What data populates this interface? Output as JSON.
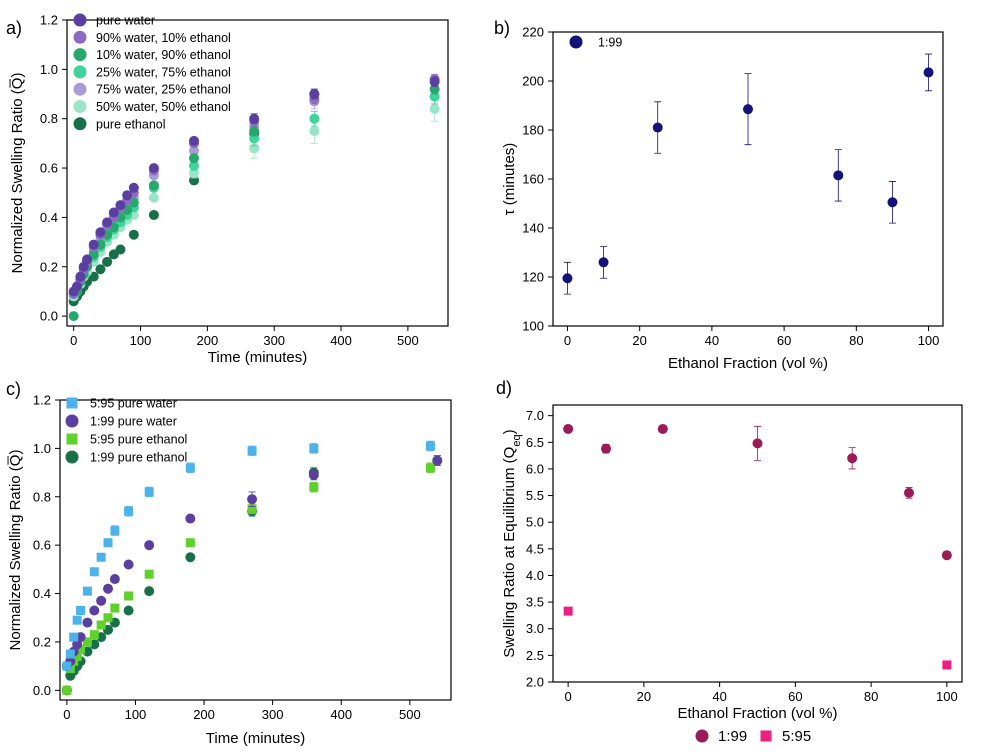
{
  "chart_data": [
    {
      "panel": "a)",
      "type": "scatter",
      "xlabel": "Time (minutes)",
      "ylabel": "Normalized Swelling Ratio (Q̅)",
      "xlim": [
        -10,
        560
      ],
      "ylim": [
        -0.04,
        1.2
      ],
      "xticks": [
        0,
        100,
        200,
        300,
        400,
        500
      ],
      "yticks": [
        0.0,
        0.2,
        0.4,
        0.6,
        0.8,
        1.0,
        1.2
      ],
      "xtick_labels": [
        "0",
        "100",
        "200",
        "300",
        "400",
        "500"
      ],
      "ytick_labels": [
        "0.0",
        "0.2",
        "0.4",
        "0.6",
        "0.8",
        "1.0",
        "1.2"
      ],
      "legend_position": "top-left",
      "series": [
        {
          "name": "pure water",
          "color": "#5b3fa0",
          "marker": "circle",
          "x": [
            0,
            5,
            10,
            15,
            20,
            30,
            40,
            50,
            60,
            70,
            80,
            90,
            120,
            180,
            270,
            360,
            540
          ],
          "y": [
            0.1,
            0.12,
            0.16,
            0.2,
            0.23,
            0.29,
            0.34,
            0.38,
            0.42,
            0.45,
            0.49,
            0.52,
            0.6,
            0.71,
            0.8,
            0.9,
            0.95
          ],
          "err": [
            0,
            0,
            0,
            0,
            0,
            0,
            0,
            0,
            0,
            0,
            0,
            0,
            0.01,
            0.01,
            0.02,
            0.02,
            0.02
          ]
        },
        {
          "name": "90% water, 10% ethanol",
          "color": "#8b6cc2",
          "marker": "circle",
          "x": [
            0,
            5,
            10,
            15,
            20,
            30,
            40,
            50,
            60,
            70,
            80,
            90,
            120,
            180,
            270,
            360,
            540
          ],
          "y": [
            0.09,
            0.12,
            0.15,
            0.19,
            0.22,
            0.28,
            0.33,
            0.37,
            0.4,
            0.44,
            0.47,
            0.5,
            0.59,
            0.7,
            0.79,
            0.88,
            0.96
          ],
          "err": [
            0,
            0,
            0,
            0,
            0,
            0,
            0,
            0,
            0,
            0,
            0,
            0,
            0.01,
            0.01,
            0.02,
            0.02,
            0.02
          ]
        },
        {
          "name": "10% water, 90% ethanol",
          "color": "#27a86b",
          "marker": "circle",
          "x": [
            0,
            5,
            10,
            15,
            20,
            30,
            40,
            50,
            60,
            70,
            80,
            90,
            120,
            180,
            270,
            360,
            540
          ],
          "y": [
            0.0,
            0.1,
            0.14,
            0.17,
            0.2,
            0.25,
            0.29,
            0.33,
            0.36,
            0.4,
            0.43,
            0.46,
            0.53,
            0.64,
            0.75,
            0.9,
            0.92
          ],
          "err": [
            0,
            0,
            0,
            0,
            0,
            0,
            0,
            0,
            0,
            0,
            0,
            0,
            0.01,
            0.01,
            0.02,
            0.02,
            0.02
          ]
        },
        {
          "name": "25% water, 75% ethanol",
          "color": "#3ed39a",
          "marker": "circle",
          "x": [
            0,
            5,
            10,
            15,
            20,
            30,
            40,
            50,
            60,
            70,
            80,
            90,
            120,
            180,
            270,
            360,
            540
          ],
          "y": [
            0.09,
            0.11,
            0.14,
            0.17,
            0.2,
            0.24,
            0.28,
            0.32,
            0.35,
            0.38,
            0.41,
            0.44,
            0.52,
            0.61,
            0.72,
            0.8,
            0.89
          ],
          "err": [
            0,
            0,
            0,
            0,
            0,
            0,
            0,
            0,
            0,
            0,
            0,
            0,
            0.01,
            0.02,
            0.03,
            0.03,
            0.03
          ]
        },
        {
          "name": "75% water, 25% ethanol",
          "color": "#aa9ad8",
          "marker": "circle",
          "x": [
            0,
            5,
            10,
            15,
            20,
            30,
            40,
            50,
            60,
            70,
            80,
            90,
            120,
            180,
            270,
            360,
            540
          ],
          "y": [
            0.09,
            0.12,
            0.15,
            0.18,
            0.21,
            0.26,
            0.31,
            0.35,
            0.39,
            0.42,
            0.45,
            0.48,
            0.57,
            0.67,
            0.77,
            0.87,
            0.89
          ],
          "err": [
            0,
            0,
            0,
            0,
            0,
            0,
            0,
            0,
            0,
            0,
            0,
            0,
            0.01,
            0.01,
            0.02,
            0.03,
            0.03
          ]
        },
        {
          "name": "50% water, 50% ethanol",
          "color": "#9be4c8",
          "marker": "circle",
          "x": [
            0,
            5,
            10,
            15,
            20,
            30,
            40,
            50,
            60,
            70,
            80,
            90,
            120,
            180,
            270,
            360,
            540
          ],
          "y": [
            0.08,
            0.1,
            0.13,
            0.16,
            0.18,
            0.22,
            0.26,
            0.3,
            0.33,
            0.36,
            0.39,
            0.41,
            0.48,
            0.58,
            0.68,
            0.75,
            0.84
          ],
          "err": [
            0,
            0,
            0,
            0,
            0,
            0,
            0,
            0,
            0,
            0,
            0,
            0,
            0.01,
            0.02,
            0.04,
            0.05,
            0.05
          ]
        },
        {
          "name": "pure ethanol",
          "color": "#17704a",
          "marker": "circle",
          "x": [
            0,
            5,
            10,
            15,
            20,
            30,
            40,
            50,
            60,
            70,
            90,
            120,
            180,
            270,
            360
          ],
          "y": [
            0.06,
            0.08,
            0.1,
            0.12,
            0.14,
            0.16,
            0.19,
            0.22,
            0.25,
            0.27,
            0.33,
            0.41,
            0.55,
            0.74,
            0.9
          ],
          "err": [
            0,
            0,
            0,
            0,
            0,
            0,
            0,
            0,
            0,
            0,
            0,
            0,
            0.01,
            0.02,
            0.02
          ]
        }
      ]
    },
    {
      "panel": "b)",
      "type": "scatter",
      "xlabel": "Ethanol Fraction (vol %)",
      "ylabel": "τ (minutes)",
      "xlim": [
        -4,
        104
      ],
      "ylim": [
        100,
        220
      ],
      "xticks": [
        0,
        20,
        40,
        60,
        80,
        100
      ],
      "yticks": [
        100,
        120,
        140,
        160,
        180,
        200,
        220
      ],
      "xtick_labels": [
        "0",
        "20",
        "40",
        "60",
        "80",
        "100"
      ],
      "ytick_labels": [
        "100",
        "120",
        "140",
        "160",
        "180",
        "200",
        "220"
      ],
      "legend_position": "top-left",
      "series": [
        {
          "name": "1:99",
          "color": "#13137a",
          "marker": "circle",
          "x": [
            0,
            10,
            25,
            50,
            75,
            90,
            100
          ],
          "y": [
            119.5,
            126,
            181,
            188.5,
            161.5,
            150.5,
            203.5
          ],
          "err": [
            6.5,
            6.5,
            10.5,
            14.5,
            10.5,
            8.5,
            7.5
          ]
        }
      ]
    },
    {
      "panel": "c)",
      "type": "scatter",
      "xlabel": "Time (minutes)",
      "ylabel": "Normalized Swelling Ratio (Q̅)",
      "xlim": [
        -10,
        560
      ],
      "ylim": [
        -0.04,
        1.2
      ],
      "xticks": [
        0,
        100,
        200,
        300,
        400,
        500
      ],
      "yticks": [
        0.0,
        0.2,
        0.4,
        0.6,
        0.8,
        1.0,
        1.2
      ],
      "xtick_labels": [
        "0",
        "100",
        "200",
        "300",
        "400",
        "500"
      ],
      "ytick_labels": [
        "0.0",
        "0.2",
        "0.4",
        "0.6",
        "0.8",
        "1.0",
        "1.2"
      ],
      "legend_position": "top-left",
      "series": [
        {
          "name": "5:95 pure water",
          "color": "#4cb3ea",
          "marker": "square",
          "x": [
            0,
            5,
            10,
            15,
            20,
            30,
            40,
            50,
            60,
            70,
            90,
            120,
            180,
            270,
            360,
            530
          ],
          "y": [
            0.1,
            0.15,
            0.22,
            0.29,
            0.33,
            0.41,
            0.49,
            0.55,
            0.61,
            0.66,
            0.74,
            0.82,
            0.92,
            0.99,
            1.0,
            1.01
          ],
          "err": [
            0,
            0,
            0,
            0,
            0,
            0,
            0.01,
            0.01,
            0.01,
            0.02,
            0.02,
            0.02,
            0.02,
            0.02,
            0.02,
            0.02
          ]
        },
        {
          "name": "1:99 pure water",
          "color": "#5b3fa0",
          "marker": "circle",
          "x": [
            0,
            5,
            10,
            15,
            20,
            30,
            40,
            50,
            60,
            70,
            90,
            120,
            180,
            270,
            360,
            540
          ],
          "y": [
            0.1,
            0.12,
            0.16,
            0.19,
            0.22,
            0.28,
            0.33,
            0.37,
            0.42,
            0.46,
            0.52,
            0.6,
            0.71,
            0.79,
            0.89,
            0.95
          ],
          "err": [
            0,
            0,
            0,
            0,
            0,
            0,
            0,
            0,
            0,
            0,
            0,
            0.01,
            0.01,
            0.03,
            0.02,
            0.02
          ]
        },
        {
          "name": "5:95 pure ethanol",
          "color": "#5fd12a",
          "marker": "square",
          "x": [
            0,
            5,
            10,
            15,
            20,
            30,
            40,
            50,
            60,
            70,
            90,
            120,
            180,
            270,
            360,
            530
          ],
          "y": [
            0.0,
            0.09,
            0.12,
            0.14,
            0.17,
            0.2,
            0.23,
            0.27,
            0.3,
            0.34,
            0.39,
            0.48,
            0.61,
            0.75,
            0.84,
            0.92
          ],
          "err": [
            0,
            0,
            0,
            0,
            0,
            0,
            0,
            0,
            0,
            0,
            0,
            0.01,
            0.01,
            0.02,
            0.02,
            0.02
          ]
        },
        {
          "name": "1:99 pure ethanol",
          "color": "#17704a",
          "marker": "circle",
          "x": [
            0,
            5,
            10,
            15,
            20,
            30,
            40,
            50,
            60,
            70,
            90,
            120,
            180,
            270,
            360,
            540
          ],
          "y": [
            0.0,
            0.06,
            0.08,
            0.1,
            0.12,
            0.16,
            0.19,
            0.22,
            0.25,
            0.28,
            0.33,
            0.41,
            0.55,
            0.74,
            0.9,
            0.95
          ],
          "err": [
            0,
            0,
            0,
            0,
            0,
            0,
            0,
            0,
            0,
            0,
            0,
            0,
            0.01,
            0.02,
            0.02,
            0.02
          ]
        }
      ]
    },
    {
      "panel": "d)",
      "type": "scatter",
      "xlabel": "Ethanol Fraction (vol %)",
      "ylabel": "Swelling Ratio at Equilibrium (Q",
      "ylabel_sub": "eq",
      "ylabel_end": ")",
      "xlim": [
        -4,
        104
      ],
      "ylim": [
        2.0,
        7.2
      ],
      "xticks": [
        0,
        20,
        40,
        60,
        80,
        100
      ],
      "yticks": [
        2.0,
        2.5,
        3.0,
        3.5,
        4.0,
        4.5,
        5.0,
        5.5,
        6.0,
        6.5,
        7.0
      ],
      "xtick_labels": [
        "0",
        "20",
        "40",
        "60",
        "80",
        "100"
      ],
      "ytick_labels": [
        "2.0",
        "2.5",
        "3.0",
        "3.5",
        "4.0",
        "4.5",
        "5.0",
        "5.5",
        "6.0",
        "6.5",
        "7.0"
      ],
      "legend_position": "bottom",
      "series": [
        {
          "name": "1:99",
          "color": "#9b1b57",
          "marker": "circle",
          "x": [
            0,
            10,
            25,
            50,
            75,
            90,
            100
          ],
          "y": [
            6.75,
            6.38,
            6.75,
            6.48,
            6.2,
            5.55,
            4.38
          ],
          "err": [
            0.02,
            0.08,
            0.05,
            0.32,
            0.2,
            0.1,
            0.03
          ]
        },
        {
          "name": "5:95",
          "color": "#ee1f83",
          "marker": "square",
          "x": [
            0,
            100
          ],
          "y": [
            3.33,
            2.32
          ],
          "err": [
            0,
            0
          ]
        }
      ]
    }
  ]
}
